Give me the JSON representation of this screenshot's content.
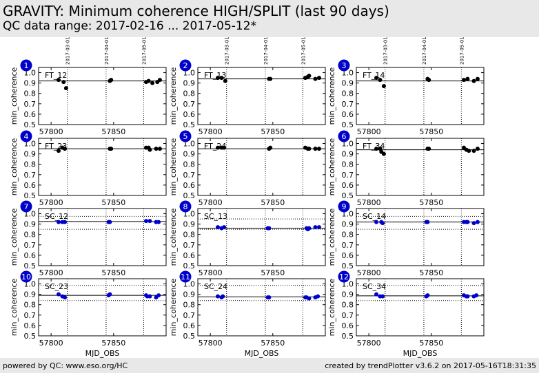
{
  "header": {
    "title": "GRAVITY: Minimum coherence HIGH/SPLIT (last 90 days)",
    "subtitle": "QC data range: 2017-02-16 ... 2017-05-12*"
  },
  "footer": {
    "left": "powered by QC: www.eso.org/HC",
    "right": "created by trendPlotter v3.6.2 on 2017-05-16T18:31:35"
  },
  "colors": {
    "ft_points": "#000000",
    "sc_points": "#0000cc",
    "badge": "#0000cc"
  },
  "chart_data": {
    "type": "scatter",
    "xlabel": "MJD_OBS",
    "ylabel": "min_coherence",
    "xlim": [
      57790,
      57892
    ],
    "ylim": [
      0.5,
      1.05
    ],
    "xticks": [
      57800,
      57850
    ],
    "yticks": [
      0.5,
      0.6,
      0.7,
      0.8,
      0.9,
      1.0
    ],
    "date_markers": [
      {
        "mjd": 57813,
        "label": "2017-03-01"
      },
      {
        "mjd": 57844,
        "label": "2017-04-01"
      },
      {
        "mjd": 57874,
        "label": "2017-05-01"
      }
    ],
    "panels": [
      {
        "id": "1",
        "name": "FT_12",
        "type": "FT",
        "ref": 0.92,
        "thresholds": [],
        "x": [
          57806,
          57810,
          57812,
          57847,
          57848,
          57876,
          57878,
          57881,
          57885,
          57887
        ],
        "y": [
          0.93,
          0.91,
          0.85,
          0.92,
          0.93,
          0.91,
          0.92,
          0.9,
          0.91,
          0.93
        ]
      },
      {
        "id": "2",
        "name": "FT_13",
        "type": "FT",
        "ref": 0.94,
        "thresholds": [],
        "x": [
          57806,
          57809,
          57812,
          57847,
          57848,
          57876,
          57878,
          57879,
          57884,
          57887
        ],
        "y": [
          0.95,
          0.95,
          0.92,
          0.94,
          0.94,
          0.95,
          0.96,
          0.97,
          0.94,
          0.95
        ]
      },
      {
        "id": "3",
        "name": "FT_14",
        "type": "FT",
        "ref": 0.92,
        "thresholds": [],
        "x": [
          57806,
          57809,
          57812,
          57847,
          57848,
          57876,
          57879,
          57884,
          57887
        ],
        "y": [
          0.95,
          0.93,
          0.87,
          0.94,
          0.93,
          0.93,
          0.94,
          0.92,
          0.94
        ]
      },
      {
        "id": "4",
        "name": "FT_23",
        "type": "FT",
        "ref": 0.95,
        "thresholds": [],
        "x": [
          57806,
          57809,
          57811,
          57847,
          57848,
          57876,
          57878,
          57879,
          57884,
          57887
        ],
        "y": [
          0.93,
          0.96,
          0.95,
          0.95,
          0.95,
          0.96,
          0.96,
          0.94,
          0.95,
          0.95
        ]
      },
      {
        "id": "5",
        "name": "FT_24",
        "type": "FT",
        "ref": 0.95,
        "thresholds": [],
        "x": [
          57806,
          57809,
          57811,
          57847,
          57848,
          57876,
          57878,
          57879,
          57884,
          57887
        ],
        "y": [
          0.96,
          0.96,
          0.96,
          0.95,
          0.96,
          0.96,
          0.95,
          0.95,
          0.95,
          0.95
        ]
      },
      {
        "id": "6",
        "name": "FT_34",
        "type": "FT",
        "ref": 0.94,
        "thresholds": [],
        "x": [
          57806,
          57809,
          57810,
          57812,
          57847,
          57848,
          57876,
          57878,
          57880,
          57884,
          57887
        ],
        "y": [
          0.95,
          0.95,
          0.92,
          0.9,
          0.95,
          0.95,
          0.96,
          0.94,
          0.93,
          0.93,
          0.95
        ]
      },
      {
        "id": "7",
        "name": "SC_12",
        "type": "SC",
        "ref": 0.925,
        "thresholds": [
          0.975,
          0.85
        ],
        "x": [
          57806,
          57809,
          57811,
          57846,
          57847,
          57876,
          57879,
          57884,
          57886
        ],
        "y": [
          0.92,
          0.92,
          0.92,
          0.92,
          0.92,
          0.93,
          0.93,
          0.92,
          0.92
        ]
      },
      {
        "id": "8",
        "name": "SC_13",
        "type": "SC",
        "ref": 0.86,
        "thresholds": [
          0.95,
          0.85
        ],
        "x": [
          57806,
          57809,
          57811,
          57846,
          57847,
          57877,
          57878,
          57879,
          57884,
          57887
        ],
        "y": [
          0.87,
          0.86,
          0.87,
          0.86,
          0.86,
          0.86,
          0.85,
          0.86,
          0.87,
          0.87
        ]
      },
      {
        "id": "9",
        "name": "SC_14",
        "type": "SC",
        "ref": 0.92,
        "thresholds": [
          0.975,
          0.85
        ],
        "x": [
          57806,
          57810,
          57811,
          57846,
          57847,
          57876,
          57878,
          57879,
          57884,
          57887
        ],
        "y": [
          0.92,
          0.92,
          0.91,
          0.92,
          0.92,
          0.92,
          0.92,
          0.92,
          0.91,
          0.92
        ]
      },
      {
        "id": "10",
        "name": "SC_23",
        "type": "SC",
        "ref": 0.89,
        "thresholds": [
          0.985,
          0.84
        ],
        "x": [
          57806,
          57809,
          57811,
          57846,
          57847,
          57876,
          57877,
          57879,
          57884,
          57886
        ],
        "y": [
          0.9,
          0.88,
          0.87,
          0.89,
          0.9,
          0.89,
          0.88,
          0.88,
          0.87,
          0.89
        ]
      },
      {
        "id": "11",
        "name": "SC_24",
        "type": "SC",
        "ref": 0.875,
        "thresholds": [
          0.985,
          0.84
        ],
        "x": [
          57806,
          57809,
          57810,
          57846,
          57847,
          57876,
          57877,
          57879,
          57884,
          57886
        ],
        "y": [
          0.88,
          0.87,
          0.88,
          0.87,
          0.87,
          0.87,
          0.87,
          0.86,
          0.87,
          0.88
        ]
      },
      {
        "id": "12",
        "name": "SC_34",
        "type": "SC",
        "ref": 0.885,
        "thresholds": [
          0.985,
          0.84
        ],
        "x": [
          57806,
          57809,
          57811,
          57846,
          57847,
          57876,
          57878,
          57879,
          57884,
          57886
        ],
        "y": [
          0.9,
          0.88,
          0.88,
          0.88,
          0.89,
          0.89,
          0.88,
          0.88,
          0.88,
          0.89
        ]
      }
    ]
  }
}
